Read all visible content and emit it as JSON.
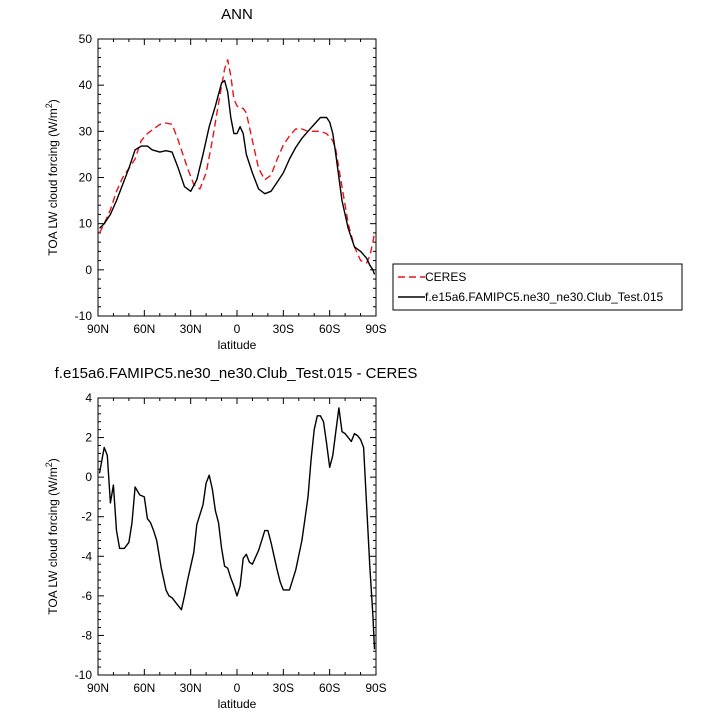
{
  "chart_data": [
    {
      "type": "line",
      "title": "ANN",
      "xlabel": "latitude",
      "ylabel": "TOA LW cloud forcing (W/m",
      "ylabel_sup": "2",
      "ylabel_close": ")",
      "xlim": [
        90,
        -90
      ],
      "ylim": [
        -10,
        50
      ],
      "x_ticks": [
        90,
        60,
        30,
        0,
        -30,
        -60,
        -90
      ],
      "x_tick_labels": [
        "90N",
        "60N",
        "30N",
        "0",
        "30S",
        "60S",
        "90S"
      ],
      "y_ticks": [
        -10,
        0,
        10,
        20,
        30,
        40,
        50
      ],
      "y_tick_labels": [
        "-10",
        "0",
        "10",
        "20",
        "30",
        "40",
        "50"
      ],
      "grid": false,
      "legend_placement": "outside-right",
      "series": [
        {
          "name": "CERES",
          "color": "#e8141a",
          "dash": "dashed",
          "x": [
            89,
            86,
            82,
            78,
            74,
            70,
            66,
            62,
            58,
            54,
            50,
            46,
            42,
            38,
            35,
            32,
            28,
            24,
            20,
            16,
            12,
            8,
            6,
            4,
            2,
            0,
            -2,
            -4,
            -6,
            -10,
            -14,
            -18,
            -22,
            -26,
            -30,
            -34,
            -38,
            -42,
            -46,
            -50,
            -54,
            -58,
            -62,
            -64,
            -68,
            -72,
            -76,
            -80,
            -84,
            -86,
            -88,
            -89
          ],
          "y": [
            8,
            10,
            13,
            17,
            20,
            22,
            24,
            28,
            29.5,
            30.5,
            31.5,
            31.8,
            31.5,
            28,
            25,
            22,
            18.5,
            17.5,
            21,
            28,
            36,
            43.5,
            45.5,
            42,
            37,
            35.5,
            35,
            35,
            34,
            28,
            22,
            19.5,
            20.5,
            24,
            27,
            29,
            30.5,
            30.5,
            30,
            30,
            30,
            29.5,
            28,
            26,
            18,
            10,
            5,
            2,
            1.5,
            3,
            6,
            8
          ]
        },
        {
          "name": "f.e15a6.FAMIPC5.ne30_ne30.Club_Test.015",
          "color": "#000000",
          "dash": "solid",
          "x": [
            89,
            86,
            82,
            78,
            74,
            70,
            66,
            62,
            58,
            55,
            50,
            46,
            42,
            38,
            34,
            30,
            26,
            22,
            18,
            14,
            10,
            8,
            6,
            4,
            2,
            0,
            -2,
            -4,
            -6,
            -10,
            -14,
            -18,
            -22,
            -26,
            -30,
            -34,
            -38,
            -42,
            -46,
            -50,
            -54,
            -58,
            -60,
            -62,
            -64,
            -68,
            -72,
            -76,
            -80,
            -84,
            -86,
            -88,
            -89
          ],
          "y": [
            9,
            10,
            12,
            15,
            18.5,
            22,
            26,
            26.8,
            26.8,
            26,
            25.5,
            25.8,
            25.5,
            22,
            18,
            17,
            19.5,
            25,
            31,
            35.5,
            40.5,
            41,
            38.5,
            33,
            29.5,
            29.5,
            31,
            29.5,
            25,
            21,
            17.5,
            16.5,
            17,
            19,
            21,
            24,
            26.5,
            28.5,
            30,
            31.5,
            33,
            33,
            32,
            29.5,
            25,
            15,
            9,
            5,
            4,
            2.5,
            1,
            0,
            -1
          ]
        }
      ]
    },
    {
      "type": "line",
      "title": "f.e15a6.FAMIPC5.ne30_ne30.Club_Test.015 - CERES",
      "xlabel": "latitude",
      "ylabel": "TOA LW cloud forcing (W/m",
      "ylabel_sup": "2",
      "ylabel_close": ")",
      "xlim": [
        90,
        -90
      ],
      "ylim": [
        -10,
        4
      ],
      "x_ticks": [
        90,
        60,
        30,
        0,
        -30,
        -60,
        -90
      ],
      "x_tick_labels": [
        "90N",
        "60N",
        "30N",
        "0",
        "30S",
        "60S",
        "90S"
      ],
      "y_ticks": [
        -10,
        -8,
        -6,
        -4,
        -2,
        0,
        2,
        4
      ],
      "y_tick_labels": [
        "-10",
        "-8",
        "-6",
        "-4",
        "-2",
        "0",
        "2",
        "4"
      ],
      "grid": false,
      "series": [
        {
          "color": "#000000",
          "dash": "solid",
          "x": [
            89,
            86,
            84,
            82,
            80,
            78,
            76,
            73,
            70,
            68,
            66,
            63,
            60,
            58,
            56,
            54,
            52,
            49,
            46,
            44,
            42,
            40,
            38,
            36,
            34,
            32,
            30,
            28,
            26,
            22,
            20,
            18,
            16,
            14,
            12,
            10,
            8,
            6,
            4,
            2,
            0,
            -2,
            -4,
            -6,
            -8,
            -10,
            -14,
            -18,
            -20,
            -22,
            -24,
            -26,
            -28,
            -30,
            -34,
            -38,
            -42,
            -44,
            -46,
            -48,
            -50,
            -52,
            -54,
            -56,
            -58,
            -60,
            -62,
            -64,
            -66,
            -68,
            -70,
            -72,
            -74,
            -76,
            -78,
            -80,
            -82,
            -84,
            -86,
            -88,
            -89
          ],
          "y": [
            0.2,
            1.5,
            1.1,
            -1.3,
            -0.4,
            -2.7,
            -3.6,
            -3.6,
            -3.3,
            -2.3,
            -0.5,
            -0.9,
            -1,
            -2.1,
            -2.3,
            -2.7,
            -3.2,
            -4.6,
            -5.7,
            -6,
            -6.1,
            -6.3,
            -6.5,
            -6.7,
            -6,
            -5.2,
            -4.5,
            -3.8,
            -2.4,
            -1.4,
            -0.3,
            0.1,
            -0.6,
            -1.7,
            -2.3,
            -3.6,
            -4.5,
            -4.6,
            -5.1,
            -5.5,
            -6,
            -5.5,
            -4.1,
            -3.9,
            -4.3,
            -4.4,
            -3.7,
            -2.7,
            -2.7,
            -3.3,
            -4,
            -4.7,
            -5.3,
            -5.7,
            -5.7,
            -4.7,
            -3.2,
            -2.1,
            -1,
            0.9,
            2.4,
            3.1,
            3.1,
            2.8,
            1.7,
            0.5,
            1.1,
            2.3,
            3.5,
            2.3,
            2.2,
            2,
            1.8,
            2.2,
            2.1,
            1.9,
            1.5,
            -1.5,
            -4.5,
            -7,
            -8.7
          ]
        }
      ]
    }
  ]
}
